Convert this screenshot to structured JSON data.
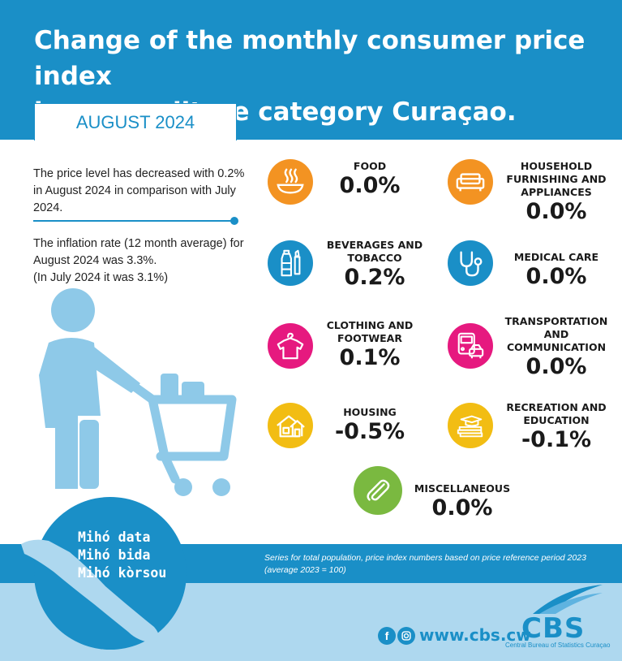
{
  "header": {
    "title_line1": "Change of the monthly consumer price index",
    "title_line2": "by expenditure category Curaçao.",
    "month": "AUGUST 2024"
  },
  "intro": {
    "price_level_text": "The price level has decreased with 0.2% in August 2024 in comparison with July 2024.",
    "inflation_line1": "The inflation rate (12 month average) for August 2024 was 3.3%.",
    "inflation_line2": "(In July 2024 it was 3.1%)"
  },
  "categories": {
    "food": {
      "label": "FOOD",
      "value": "0.0%",
      "color": "#f39322",
      "icon": "food-bowl-icon"
    },
    "household": {
      "label": "HOUSEHOLD FURNISHING AND APPLIANCES",
      "value": "0.0%",
      "color": "#f39322",
      "icon": "sofa-icon"
    },
    "beverages": {
      "label": "BEVERAGES AND TOBACCO",
      "value": "0.2%",
      "color": "#1a8fc7",
      "icon": "bottle-icon"
    },
    "medical": {
      "label": "MEDICAL CARE",
      "value": "0.0%",
      "color": "#1a8fc7",
      "icon": "stethoscope-icon"
    },
    "clothing": {
      "label": "CLOTHING AND FOOTWEAR",
      "value": "0.1%",
      "color": "#e6197f",
      "icon": "shirt-icon"
    },
    "transport": {
      "label": "TRANSPORTATION AND COMMUNICATION",
      "value": "0.0%",
      "color": "#e6197f",
      "icon": "bus-car-icon"
    },
    "housing": {
      "label": "HOUSING",
      "value": "-0.5%",
      "color": "#f2bd13",
      "icon": "house-icon"
    },
    "recreation": {
      "label": "RECREATION AND EDUCATION",
      "value": "-0.1%",
      "color": "#f2bd13",
      "icon": "books-icon"
    },
    "misc": {
      "label": "MISCELLANEOUS",
      "value": "0.0%",
      "color": "#7ab940",
      "icon": "paperclip-icon"
    }
  },
  "footer": {
    "note": "Series for total population, price index numbers based on price reference period 2023 (average 2023 = 100)",
    "badge": [
      "Mihó data",
      "Mihó bida",
      "Mihó kòrsou"
    ],
    "website": "www.cbs.cw",
    "logo": "CBS",
    "logo_subtitle": "Central Bureau of Statistics Curaçao"
  }
}
